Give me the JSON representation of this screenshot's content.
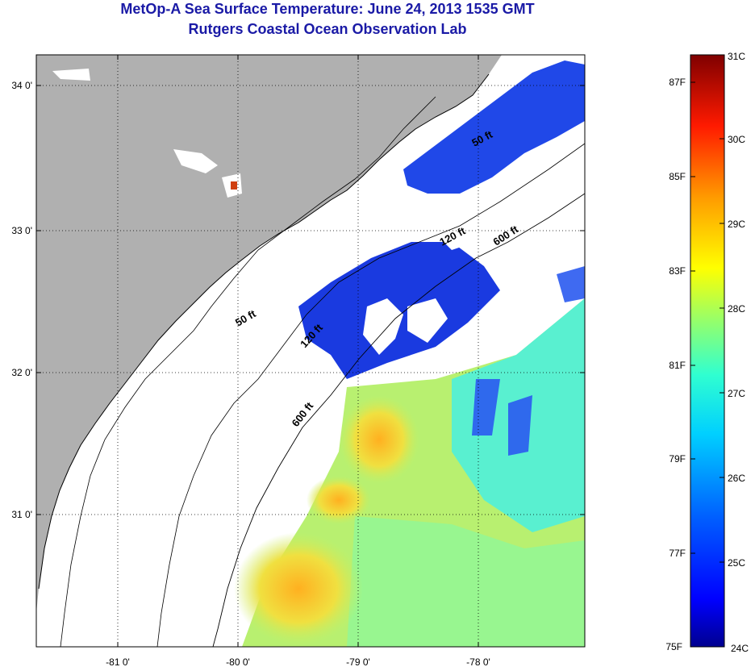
{
  "title": {
    "line1": "MetOp-A Sea Surface Temperature:  June 24, 2013 1535 GMT",
    "line2": "Rutgers Coastal Ocean Observation Lab"
  },
  "map": {
    "lon_range": [
      -81.7,
      -77.2
    ],
    "lat_range": [
      30.2,
      34.25
    ],
    "lon_ticks": [
      {
        "value": -81,
        "label": "-81 0'"
      },
      {
        "value": -80,
        "label": "-80 0'"
      },
      {
        "value": -79,
        "label": "-79 0'"
      },
      {
        "value": -78,
        "label": "-78 0'"
      }
    ],
    "lat_ticks": [
      {
        "value": 34,
        "label": "34 0'"
      },
      {
        "value": 33,
        "label": "33 0'"
      },
      {
        "value": 32,
        "label": "32 0'"
      },
      {
        "value": 31,
        "label": "31 0'"
      }
    ],
    "contour_labels": [
      "50 ft",
      "120 ft",
      "600 ft",
      "50 ft",
      "120 ft",
      "600 ft"
    ],
    "colors": {
      "land": "#b0b0b0",
      "cloud": "#ffffff"
    }
  },
  "colorbar": {
    "celsius": [
      "31C",
      "30C",
      "29C",
      "28C",
      "27C",
      "26C",
      "25C",
      "24C"
    ],
    "fahrenheit": [
      "87F",
      "85F",
      "83F",
      "81F",
      "79F",
      "77F",
      "75F"
    ],
    "celsius_range": [
      24,
      31
    ],
    "colors": [
      "#7f0000",
      "#ff0000",
      "#ff8000",
      "#ffff00",
      "#80ff80",
      "#00ffff",
      "#0080ff",
      "#0000ff",
      "#00008f"
    ]
  }
}
